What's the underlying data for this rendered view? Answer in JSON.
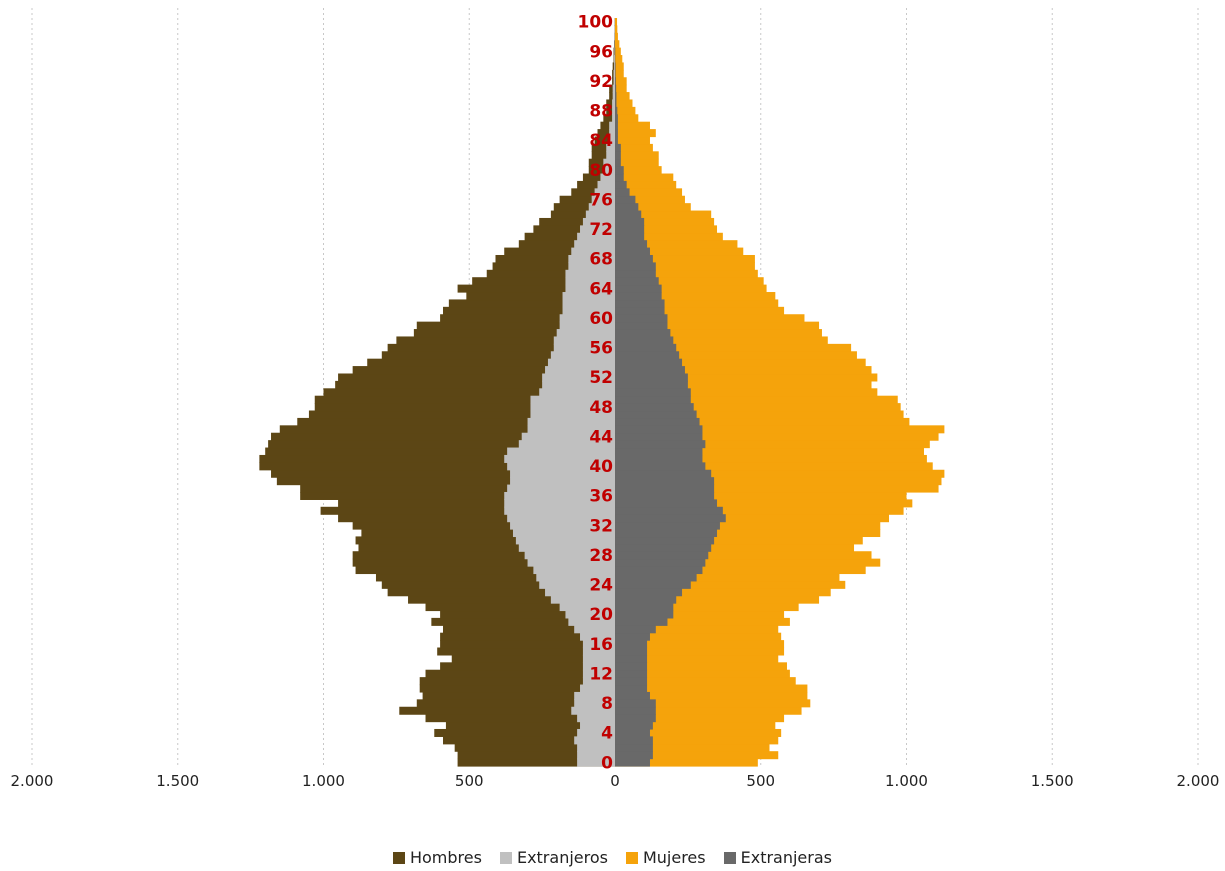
{
  "chart_data": {
    "type": "bar",
    "orientation": "horizontal-pyramid",
    "title": "",
    "xlabel": "",
    "ylabel": "",
    "xlim": [
      -2000,
      2000
    ],
    "x_ticks": [
      -2000,
      -1500,
      -1000,
      -500,
      0,
      500,
      1000,
      1500,
      2000
    ],
    "x_tick_labels": [
      "2.000",
      "1.500",
      "1.000",
      "500",
      "0",
      "500",
      "1.000",
      "1.500",
      "2.000"
    ],
    "age_labels": [
      "0",
      "4",
      "8",
      "12",
      "16",
      "20",
      "24",
      "28",
      "32",
      "36",
      "40",
      "44",
      "48",
      "52",
      "56",
      "60",
      "64",
      "68",
      "72",
      "76",
      "80",
      "84",
      "88",
      "92",
      "96",
      "100"
    ],
    "age_range": [
      0,
      100
    ],
    "grid": "vertical dashed",
    "legend_position": "bottom",
    "series": [
      {
        "name": "Hombres",
        "color": "#5c4615",
        "side": "left",
        "values": [
          540,
          540,
          550,
          590,
          620,
          580,
          650,
          740,
          680,
          660,
          670,
          670,
          650,
          600,
          560,
          610,
          600,
          600,
          590,
          630,
          600,
          650,
          710,
          780,
          800,
          820,
          890,
          900,
          900,
          880,
          890,
          870,
          900,
          950,
          1010,
          950,
          1080,
          1080,
          1160,
          1180,
          1220,
          1220,
          1200,
          1190,
          1180,
          1150,
          1090,
          1050,
          1030,
          1030,
          1000,
          960,
          950,
          900,
          850,
          800,
          780,
          750,
          690,
          680,
          600,
          590,
          570,
          510,
          540,
          490,
          440,
          420,
          410,
          380,
          330,
          310,
          280,
          260,
          220,
          210,
          190,
          150,
          130,
          110,
          90,
          90,
          80,
          80,
          70,
          60,
          50,
          40,
          30,
          30,
          20,
          20,
          10,
          10,
          8,
          5,
          5,
          3,
          2,
          1,
          1
        ]
      },
      {
        "name": "Extranjeros",
        "color": "#c0c0c0",
        "side": "left",
        "values": [
          130,
          130,
          130,
          140,
          130,
          120,
          130,
          150,
          140,
          140,
          120,
          110,
          110,
          110,
          110,
          110,
          110,
          120,
          140,
          160,
          170,
          190,
          220,
          240,
          260,
          270,
          280,
          300,
          310,
          330,
          340,
          350,
          360,
          370,
          380,
          380,
          380,
          370,
          360,
          360,
          370,
          380,
          370,
          330,
          320,
          300,
          300,
          290,
          290,
          290,
          260,
          250,
          250,
          240,
          230,
          220,
          210,
          210,
          200,
          190,
          190,
          180,
          180,
          180,
          170,
          170,
          170,
          160,
          160,
          150,
          140,
          130,
          120,
          110,
          100,
          90,
          80,
          70,
          60,
          50,
          40,
          40,
          30,
          30,
          20,
          20,
          20,
          10,
          10,
          10,
          8,
          8,
          5,
          5,
          3,
          3,
          2,
          1,
          1,
          0,
          0
        ]
      },
      {
        "name": "Mujeres",
        "color": "#f5a30b",
        "side": "right",
        "values": [
          490,
          560,
          530,
          560,
          570,
          550,
          580,
          640,
          670,
          660,
          660,
          620,
          600,
          590,
          560,
          580,
          580,
          570,
          560,
          600,
          580,
          630,
          700,
          740,
          790,
          770,
          860,
          910,
          880,
          820,
          850,
          910,
          910,
          940,
          990,
          1020,
          1000,
          1110,
          1120,
          1130,
          1090,
          1070,
          1060,
          1080,
          1110,
          1130,
          1010,
          990,
          980,
          970,
          900,
          880,
          900,
          880,
          860,
          830,
          810,
          730,
          710,
          700,
          650,
          580,
          560,
          550,
          520,
          510,
          490,
          480,
          480,
          440,
          420,
          370,
          350,
          340,
          330,
          260,
          240,
          230,
          210,
          200,
          160,
          150,
          150,
          130,
          120,
          140,
          120,
          80,
          70,
          60,
          50,
          40,
          40,
          30,
          30,
          25,
          20,
          15,
          10,
          8,
          7
        ]
      },
      {
        "name": "Extranjeras",
        "color": "#696969",
        "side": "right",
        "values": [
          120,
          130,
          130,
          130,
          120,
          130,
          140,
          140,
          140,
          120,
          110,
          110,
          110,
          110,
          110,
          110,
          110,
          120,
          140,
          180,
          200,
          200,
          210,
          230,
          260,
          280,
          300,
          310,
          320,
          330,
          340,
          350,
          360,
          380,
          370,
          350,
          340,
          340,
          340,
          330,
          310,
          300,
          300,
          310,
          300,
          300,
          290,
          280,
          270,
          260,
          260,
          250,
          250,
          240,
          230,
          220,
          210,
          200,
          190,
          180,
          180,
          170,
          170,
          160,
          160,
          150,
          140,
          140,
          130,
          120,
          110,
          100,
          100,
          100,
          90,
          80,
          70,
          50,
          40,
          30,
          30,
          20,
          20,
          20,
          10,
          10,
          10,
          10,
          8,
          5,
          5,
          4,
          3,
          2,
          2,
          1,
          1,
          0,
          0,
          0,
          0
        ]
      }
    ]
  },
  "legend": {
    "items": [
      {
        "label": "Hombres",
        "color": "#5c4615"
      },
      {
        "label": "Extranjeros",
        "color": "#c0c0c0"
      },
      {
        "label": "Mujeres",
        "color": "#f5a30b"
      },
      {
        "label": "Extranjeras",
        "color": "#696969"
      }
    ]
  }
}
